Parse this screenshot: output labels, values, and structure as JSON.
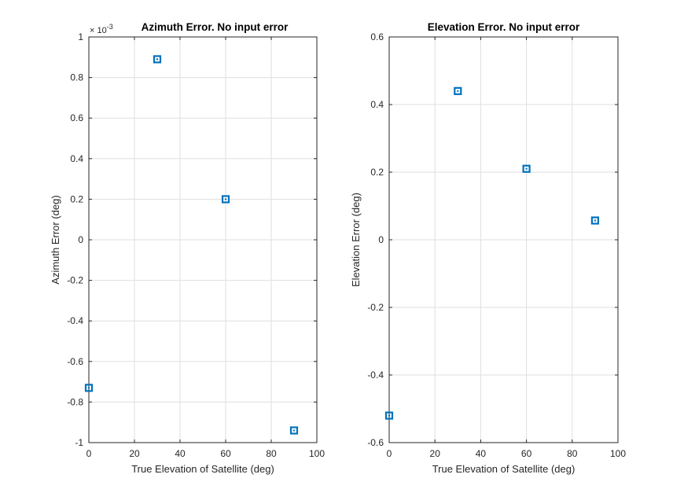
{
  "colors": {
    "marker": "#0072bd",
    "grid": "#dfdfdf",
    "axis": "#262626",
    "background": "#ffffff"
  },
  "chart_data": [
    {
      "type": "scatter",
      "title": "Azimuth Error. No input error",
      "xlabel": "True Elevation of Satellite (deg)",
      "ylabel": "Azimuth Error (deg)",
      "y_exponent_prefix": "× 10",
      "y_exponent_power": "-3",
      "xlim": [
        0,
        100
      ],
      "ylim": [
        -1,
        1
      ],
      "xticks": [
        0,
        20,
        40,
        60,
        80,
        100
      ],
      "xtick_labels": [
        "0",
        "20",
        "40",
        "60",
        "80",
        "100"
      ],
      "yticks": [
        -1,
        -0.8,
        -0.6,
        -0.4,
        -0.2,
        0,
        0.2,
        0.4,
        0.6,
        0.8,
        1
      ],
      "ytick_labels": [
        "-1",
        "-0.8",
        "-0.6",
        "-0.4",
        "-0.2",
        "0",
        "0.2",
        "0.4",
        "0.6",
        "0.8",
        "1"
      ],
      "grid": true,
      "marker": "square",
      "x": [
        0,
        30,
        60,
        90
      ],
      "y": [
        -0.73,
        0.89,
        0.2,
        -0.94
      ]
    },
    {
      "type": "scatter",
      "title": "Elevation Error. No input error",
      "xlabel": "True Elevation of Satellite (deg)",
      "ylabel": "Elevation Error (deg)",
      "xlim": [
        0,
        100
      ],
      "ylim": [
        -0.6,
        0.6
      ],
      "xticks": [
        0,
        20,
        40,
        60,
        80,
        100
      ],
      "xtick_labels": [
        "0",
        "20",
        "40",
        "60",
        "80",
        "100"
      ],
      "yticks": [
        -0.6,
        -0.4,
        -0.2,
        0,
        0.2,
        0.4,
        0.6
      ],
      "ytick_labels": [
        "-0.6",
        "-0.4",
        "-0.2",
        "0",
        "0.2",
        "0.4",
        "0.6"
      ],
      "grid": true,
      "marker": "square",
      "x": [
        0,
        30,
        60,
        90
      ],
      "y": [
        -0.52,
        0.44,
        0.21,
        0.057
      ]
    }
  ]
}
